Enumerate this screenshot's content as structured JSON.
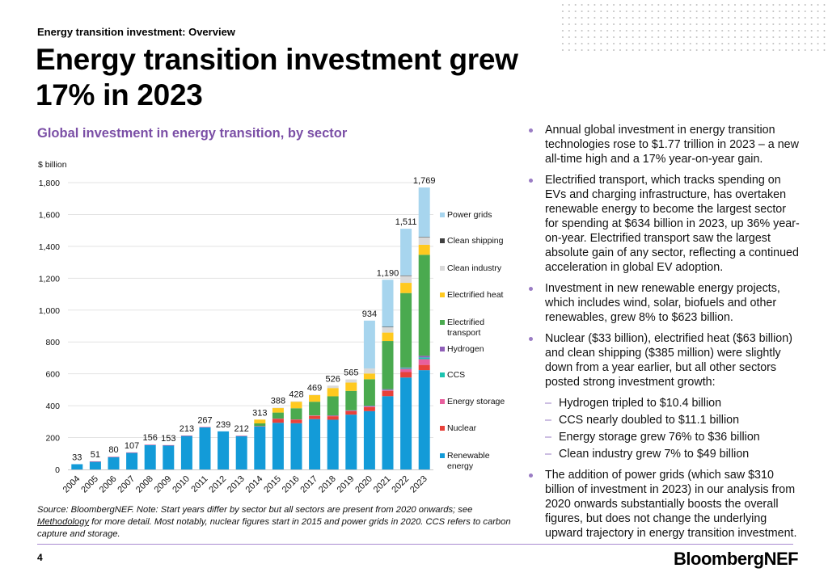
{
  "header": {
    "kicker": "Energy transition investment: Overview",
    "headline": "Energy transition investment grew 17% in 2023"
  },
  "chart_title": "Global investment in energy transition, by sector",
  "chart_data": {
    "type": "bar",
    "stacked": true,
    "title": "Global investment in energy transition, by sector",
    "ylabel": "$ billion",
    "xlabel": "",
    "ylim": [
      0,
      1800
    ],
    "yticks": [
      0,
      200,
      400,
      600,
      800,
      1000,
      1200,
      1400,
      1600,
      1800
    ],
    "ytick_labels": [
      "0",
      "200",
      "400",
      "600",
      "800",
      "1,000",
      "1,200",
      "1,400",
      "1,600",
      "1,800"
    ],
    "grid": true,
    "legend_position": "right",
    "categories": [
      "2004",
      "2005",
      "2006",
      "2007",
      "2008",
      "2009",
      "2010",
      "2011",
      "2012",
      "2013",
      "2014",
      "2015",
      "2016",
      "2017",
      "2018",
      "2019",
      "2020",
      "2021",
      "2022",
      "2023"
    ],
    "totals": [
      33,
      51,
      80,
      107,
      156,
      153,
      213,
      267,
      239,
      212,
      313,
      388,
      428,
      469,
      526,
      565,
      934,
      1190,
      1511,
      1769
    ],
    "total_labels": [
      "33",
      "51",
      "80",
      "107",
      "156",
      "153",
      "213",
      "267",
      "239",
      "212",
      "313",
      "388",
      "428",
      "469",
      "526",
      "565",
      "934",
      "1,190",
      "1,511",
      "1,769"
    ],
    "series": [
      {
        "name": "Renewable energy",
        "color": "#139bd8",
        "values": [
          33,
          50,
          78,
          106,
          154,
          152,
          211,
          265,
          239,
          210,
          270,
          293,
          290,
          316,
          312,
          344,
          366,
          460,
          577,
          623
        ]
      },
      {
        "name": "Nuclear",
        "color": "#e8413a",
        "values": [
          0,
          0,
          0,
          0,
          0,
          0,
          0,
          0,
          0,
          0,
          0,
          24,
          22,
          20,
          22,
          22,
          25,
          33,
          34,
          33
        ]
      },
      {
        "name": "Energy storage",
        "color": "#e8609e",
        "values": [
          0,
          1,
          2,
          1,
          2,
          1,
          2,
          2,
          0,
          2,
          2,
          2,
          2,
          3,
          4,
          4,
          5,
          7,
          20,
          36
        ]
      },
      {
        "name": "CCS",
        "color": "#1cc4b0",
        "values": [
          0,
          0,
          0,
          0,
          0,
          0,
          0,
          0,
          0,
          0,
          0,
          0,
          0,
          0,
          0,
          0,
          3,
          2,
          6,
          11
        ]
      },
      {
        "name": "Hydrogen",
        "color": "#8f5fb8",
        "values": [
          0,
          0,
          0,
          0,
          0,
          0,
          0,
          0,
          0,
          0,
          0,
          0,
          0,
          0,
          1,
          1,
          1,
          2,
          3,
          10
        ]
      },
      {
        "name": "Electrified transport",
        "color": "#4aaa4f",
        "values": [
          0,
          0,
          0,
          0,
          0,
          0,
          0,
          0,
          0,
          0,
          17,
          38,
          70,
          86,
          120,
          122,
          166,
          302,
          467,
          634
        ]
      },
      {
        "name": "Electrified heat",
        "color": "#ffc91f",
        "values": [
          0,
          0,
          0,
          0,
          0,
          0,
          0,
          0,
          0,
          0,
          24,
          29,
          41,
          42,
          52,
          52,
          36,
          53,
          64,
          63
        ]
      },
      {
        "name": "Clean industry",
        "color": "#d9d9d9",
        "values": [
          0,
          0,
          0,
          0,
          0,
          0,
          0,
          0,
          0,
          0,
          0,
          2,
          3,
          2,
          15,
          20,
          32,
          36,
          46,
          49
        ]
      },
      {
        "name": "Clean shipping",
        "color": "#404040",
        "values": [
          0,
          0,
          0,
          0,
          0,
          0,
          0,
          0,
          0,
          0,
          0,
          0,
          0,
          0,
          0,
          0,
          0,
          0.3,
          0.5,
          0.4
        ]
      },
      {
        "name": "Power grids",
        "color": "#a7d5ee",
        "values": [
          0,
          0,
          0,
          0,
          0,
          0,
          0,
          0,
          0,
          0,
          0,
          0,
          0,
          0,
          0,
          0,
          300,
          295,
          293,
          310
        ]
      }
    ],
    "legend": [
      "Power grids",
      "Clean shipping",
      "Clean industry",
      "Electrified heat",
      "Electrified transport",
      "Hydrogen",
      "CCS",
      "Energy storage",
      "Nuclear",
      "Renewable energy"
    ]
  },
  "bullets": [
    {
      "text": "Annual global investment in energy transition technologies rose to $1.77 trillion in 2023 – a new all-time high and a 17% year-on-year gain."
    },
    {
      "text": "Electrified transport, which tracks spending on EVs and charging infrastructure, has overtaken renewable energy to become the largest sector for spending at $634 billion in 2023, up 36% year-on-year. Electrified transport saw the largest absolute gain of any sector, reflecting a continued acceleration in global EV adoption."
    },
    {
      "text": "Investment in new renewable energy projects, which includes wind, solar, biofuels and other renewables, grew 8% to $623 billion."
    },
    {
      "text": "Nuclear ($33 billion), electrified heat ($63 billion) and clean shipping ($385 million) were slightly down from a year earlier, but all other sectors posted strong investment growth:",
      "sub": [
        "Hydrogen tripled to $10.4 billion",
        "CCS nearly doubled to $11.1 billion",
        "Energy storage grew 76% to $36 billion",
        "Clean industry grew 7% to $49 billion"
      ]
    },
    {
      "text": "The addition of power grids (which saw $310 billion of investment in 2023) in our analysis from 2020 onwards substantially boosts the overall figures, but does not change the underlying upward trajectory in energy transition investment."
    }
  ],
  "source": {
    "prefix": "Source: BloombergNEF. Note: Start years differ by sector but all sectors are present from 2020 onwards; see ",
    "link": "Methodology",
    "suffix": " for more detail. Most notably, nuclear figures start in 2015 and power grids in 2020. CCS refers to carbon capture and storage."
  },
  "footer": {
    "page_number": "4",
    "brand": "BloombergNEF"
  },
  "colors": {
    "accent": "#7b4fa6",
    "rule": "#a98ad0"
  }
}
